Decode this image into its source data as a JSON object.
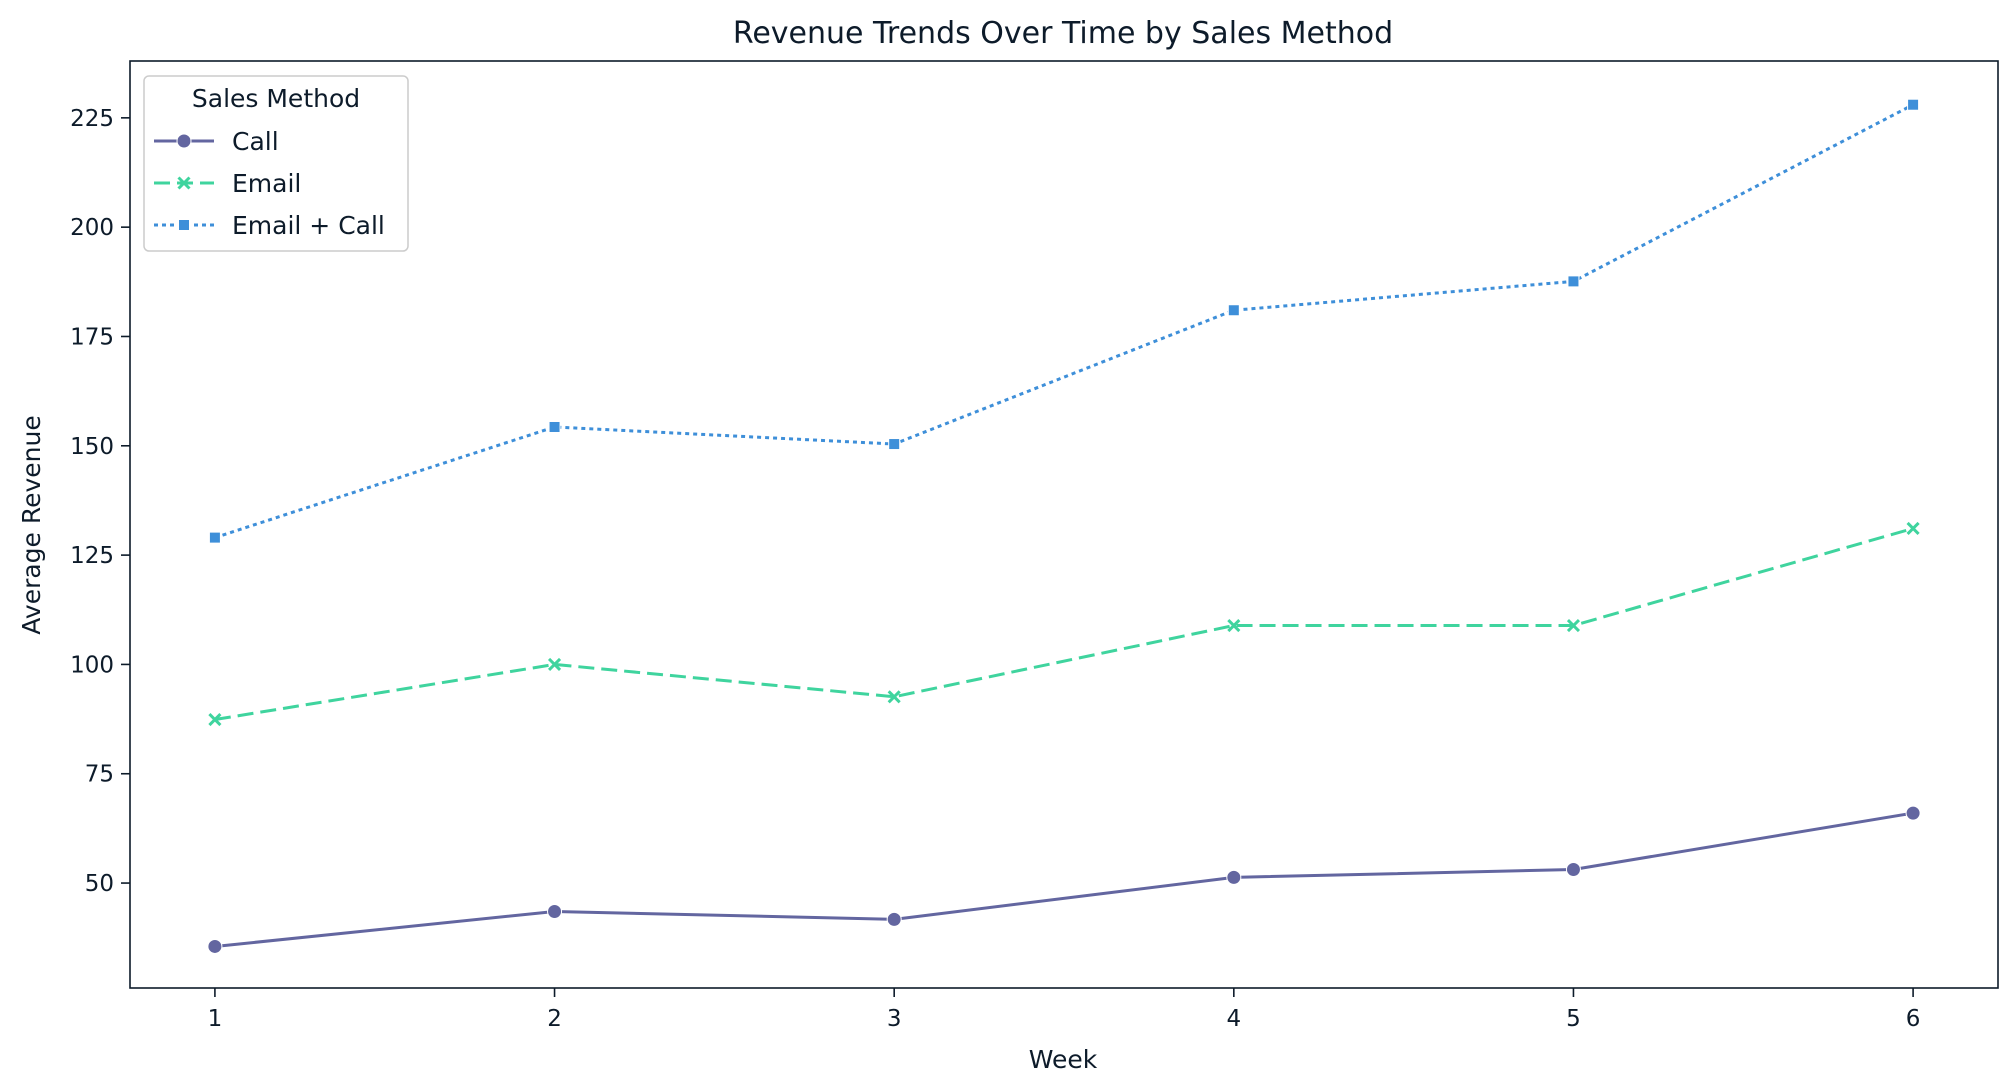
{
  "chart_data": {
    "type": "line",
    "title": "Revenue Trends Over Time by Sales Method",
    "xlabel": "Week",
    "ylabel": "Average Revenue",
    "x": [
      1,
      2,
      3,
      4,
      5,
      6
    ],
    "xticks": [
      "1",
      "2",
      "3",
      "4",
      "5",
      "6"
    ],
    "yticks": [
      "50",
      "75",
      "100",
      "125",
      "150",
      "175",
      "200",
      "225"
    ],
    "xlim": [
      0.75,
      6.25
    ],
    "ylim": [
      26,
      238
    ],
    "grid": false,
    "legend": {
      "title": "Sales Method",
      "placement": "top-left"
    },
    "series": [
      {
        "name": "Call",
        "values": [
          35.5,
          43.5,
          41.7,
          51.3,
          53.1,
          66.0
        ],
        "color": "#6366a0",
        "line_style": "solid",
        "marker": "circle"
      },
      {
        "name": "Email",
        "values": [
          87.4,
          100.0,
          92.6,
          108.9,
          108.9,
          131.1
        ],
        "color": "#3fd49e",
        "line_style": "dashed",
        "marker": "x"
      },
      {
        "name": "Email + Call",
        "values": [
          129.0,
          154.3,
          150.4,
          181.0,
          187.6,
          228.0
        ],
        "color": "#3e8fd9",
        "line_style": "dotted",
        "marker": "square"
      }
    ]
  }
}
